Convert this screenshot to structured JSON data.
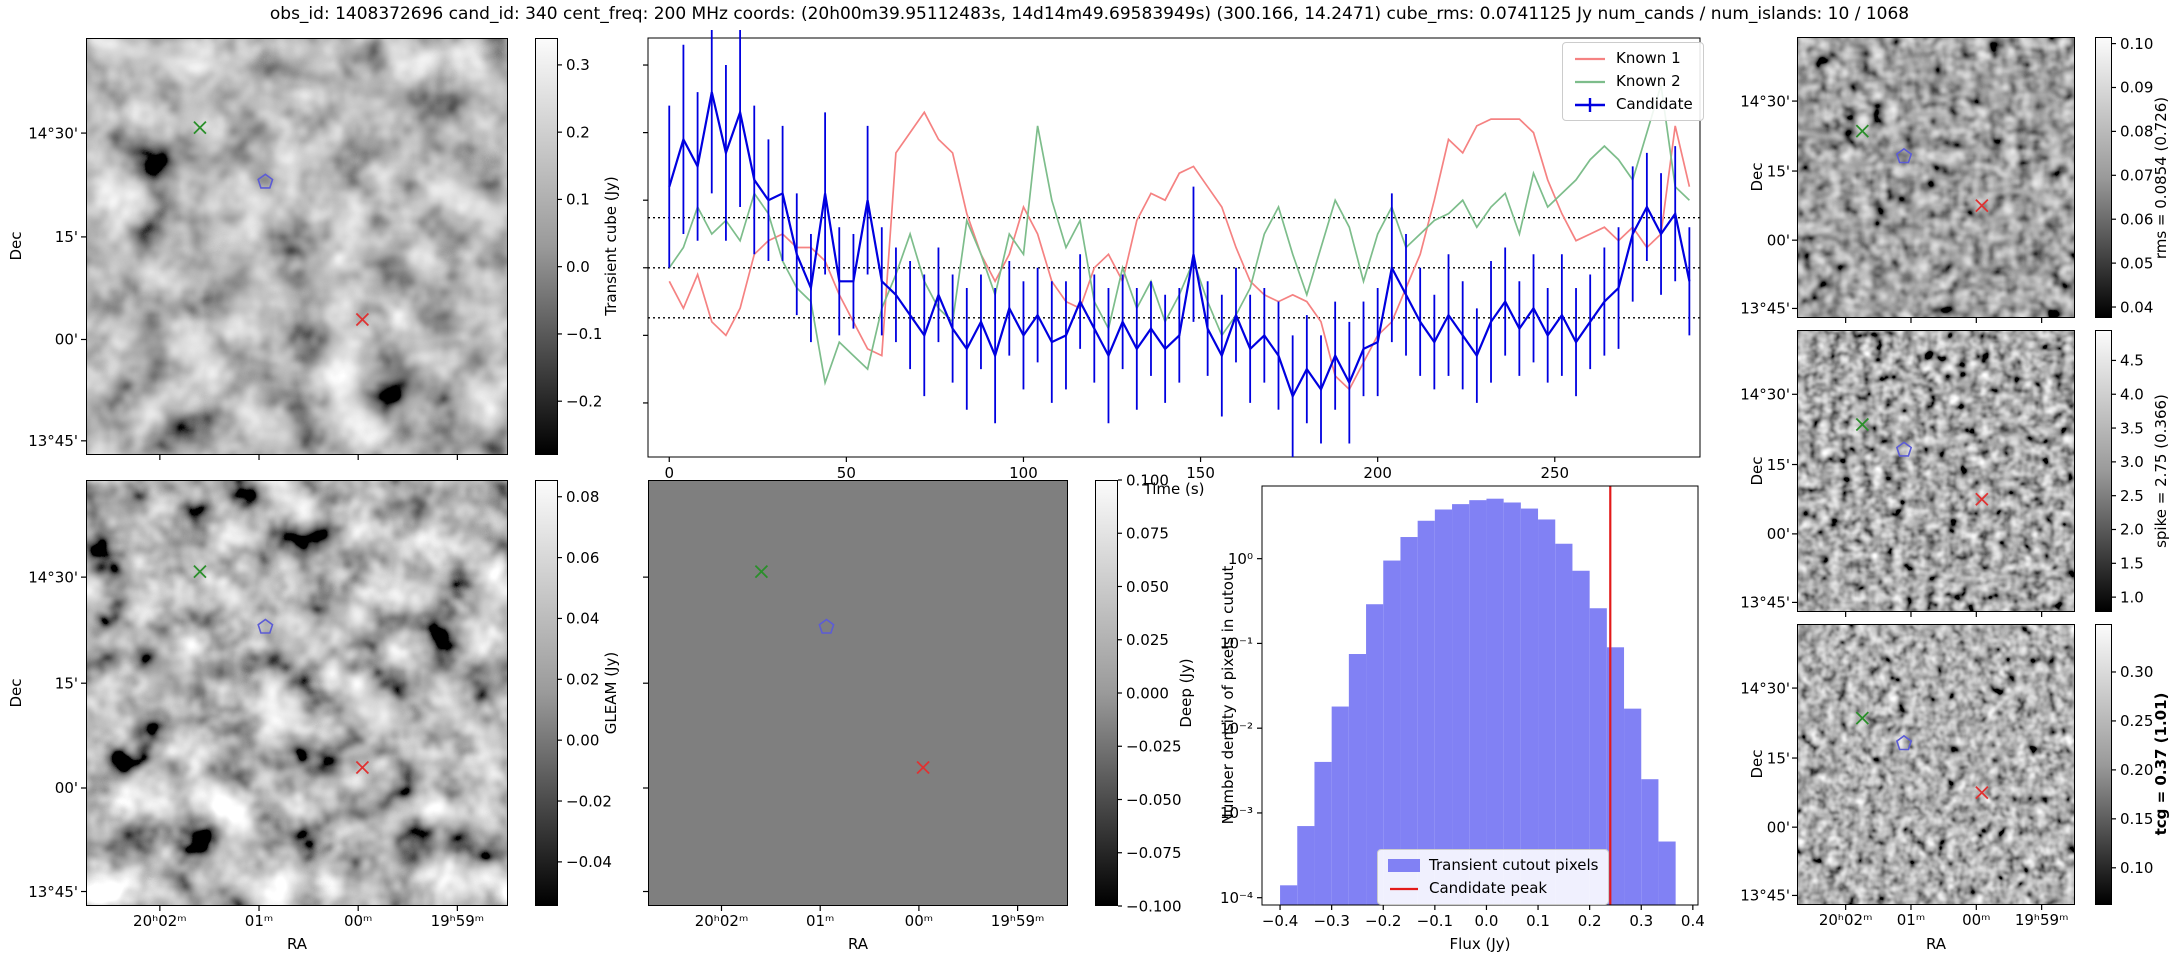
{
  "title": "obs_id: 1408372696 cand_id: 340 cent_freq: 200 MHz coords: (20h00m39.95112483s, 14d14m49.69583949s) (300.166, 14.2471) cube_rms: 0.0741125 Jy num_cands / num_islands: 10 / 1068",
  "axes": {
    "ra_label": "RA",
    "dec_label": "Dec",
    "ra_ticks": [
      "20ʰ02ᵐ",
      "01ᵐ",
      "00ᵐ",
      "19ʰ59ᵐ"
    ],
    "dec_ticks": [
      "14°30'",
      "15'",
      "00'",
      "13°45'"
    ]
  },
  "markers": {
    "candidate": {
      "shape": "pentagon",
      "color": "#5c5cd6"
    },
    "known1": {
      "shape": "x",
      "color": "#e03131"
    },
    "known2": {
      "shape": "x",
      "color": "#2a8f2a"
    }
  },
  "colorbars": {
    "transient": {
      "label": "Transient cube (Jy)",
      "vmax": 0.34,
      "vmin": -0.28,
      "ticks": [
        {
          "v": 0.3,
          "label": "0.3"
        },
        {
          "v": 0.2,
          "label": "0.2"
        },
        {
          "v": 0.1,
          "label": "0.1"
        },
        {
          "v": 0.0,
          "label": "0.0"
        },
        {
          "v": -0.1,
          "label": "−0.1"
        },
        {
          "v": -0.2,
          "label": "−0.2"
        }
      ]
    },
    "gleam": {
      "label": "GLEAM (Jy)",
      "vmax": 0.0855,
      "vmin": -0.0545,
      "ticks": [
        {
          "v": 0.08,
          "label": "0.08"
        },
        {
          "v": 0.06,
          "label": "0.06"
        },
        {
          "v": 0.04,
          "label": "0.04"
        },
        {
          "v": 0.02,
          "label": "0.02"
        },
        {
          "v": 0.0,
          "label": "0.00"
        },
        {
          "v": -0.02,
          "label": "−0.02"
        },
        {
          "v": -0.04,
          "label": "−0.04"
        }
      ]
    },
    "deep": {
      "label": "Deep (Jy)",
      "vmax": 0.1,
      "vmin": -0.1,
      "ticks": [
        {
          "v": 0.1,
          "label": "0.100"
        },
        {
          "v": 0.075,
          "label": "0.075"
        },
        {
          "v": 0.05,
          "label": "0.050"
        },
        {
          "v": 0.025,
          "label": "0.025"
        },
        {
          "v": 0.0,
          "label": "0.000"
        },
        {
          "v": -0.025,
          "label": "−0.025"
        },
        {
          "v": -0.05,
          "label": "−0.050"
        },
        {
          "v": -0.075,
          "label": "−0.075"
        },
        {
          "v": -0.1,
          "label": "−0.100"
        }
      ]
    },
    "rms": {
      "label": "rms = 0.0854 (0.726)",
      "vmax": 0.1015,
      "vmin": 0.0375,
      "ticks": [
        {
          "v": 0.1,
          "label": "0.10"
        },
        {
          "v": 0.09,
          "label": "0.09"
        },
        {
          "v": 0.08,
          "label": "0.08"
        },
        {
          "v": 0.07,
          "label": "0.07"
        },
        {
          "v": 0.06,
          "label": "0.06"
        },
        {
          "v": 0.05,
          "label": "0.05"
        },
        {
          "v": 0.04,
          "label": "0.04"
        }
      ]
    },
    "spike": {
      "label": "spike = 2.75 (0.366)",
      "vmax": 4.95,
      "vmin": 0.78,
      "ticks": [
        {
          "v": 4.5,
          "label": "4.5"
        },
        {
          "v": 4.0,
          "label": "4.0"
        },
        {
          "v": 3.5,
          "label": "3.5"
        },
        {
          "v": 3.0,
          "label": "3.0"
        },
        {
          "v": 2.5,
          "label": "2.5"
        },
        {
          "v": 2.0,
          "label": "2.0"
        },
        {
          "v": 1.5,
          "label": "1.5"
        },
        {
          "v": 1.0,
          "label": "1.0"
        }
      ]
    },
    "tcg": {
      "label": "tcg = 0.37 (1.01)",
      "bold": true,
      "vmax": 0.349,
      "vmin": 0.062,
      "ticks": [
        {
          "v": 0.3,
          "label": "0.30"
        },
        {
          "v": 0.25,
          "label": "0.25"
        },
        {
          "v": 0.2,
          "label": "0.20"
        },
        {
          "v": 0.15,
          "label": "0.15"
        },
        {
          "v": 0.1,
          "label": "0.10"
        }
      ]
    }
  },
  "chart_data": [
    {
      "type": "line",
      "title": "",
      "xlabel": "Time (s)",
      "ylabel": "Transient cube (Jy)",
      "xlim": [
        -6,
        291
      ],
      "ylim": [
        -0.28,
        0.34
      ],
      "grid": false,
      "legend_position": "upper right",
      "x_ticks": [
        {
          "v": 0,
          "label": "0"
        },
        {
          "v": 50,
          "label": "50"
        },
        {
          "v": 100,
          "label": "100"
        },
        {
          "v": 150,
          "label": "150"
        },
        {
          "v": 200,
          "label": "200"
        },
        {
          "v": 250,
          "label": "250"
        }
      ],
      "hlines": [
        0.0741125,
        0,
        -0.0741125
      ],
      "x_start": 0,
      "x_step": 4,
      "series": [
        {
          "name": "Known 1",
          "color": "#f58282",
          "values": [
            -0.02,
            -0.06,
            -0.01,
            -0.08,
            -0.1,
            -0.06,
            0.02,
            0.04,
            0.05,
            0.03,
            0.03,
            0.01,
            -0.04,
            -0.08,
            -0.12,
            -0.13,
            0.17,
            0.2,
            0.23,
            0.19,
            0.17,
            0.08,
            0.02,
            -0.02,
            0.02,
            0.09,
            0.05,
            -0.02,
            -0.05,
            -0.06,
            0.0,
            0.02,
            -0.02,
            0.07,
            0.11,
            0.1,
            0.14,
            0.15,
            0.12,
            0.09,
            0.03,
            -0.02,
            -0.04,
            -0.05,
            -0.04,
            -0.05,
            -0.08,
            -0.16,
            -0.18,
            -0.14,
            -0.1,
            -0.08,
            -0.03,
            0.02,
            0.1,
            0.19,
            0.17,
            0.21,
            0.22,
            0.22,
            0.22,
            0.2,
            0.13,
            0.08,
            0.04,
            0.05,
            0.06,
            0.04,
            0.06,
            0.03,
            0.05,
            0.21,
            0.12
          ]
        },
        {
          "name": "Known 2",
          "color": "#7dbd8b",
          "values": [
            0.0,
            0.03,
            0.09,
            0.05,
            0.07,
            0.04,
            0.11,
            0.08,
            0.01,
            -0.03,
            -0.05,
            -0.17,
            -0.11,
            -0.13,
            -0.15,
            -0.06,
            -0.01,
            0.05,
            -0.02,
            -0.06,
            -0.08,
            0.07,
            0.02,
            -0.04,
            0.05,
            0.02,
            0.21,
            0.1,
            0.03,
            0.07,
            -0.05,
            -0.09,
            0.0,
            -0.06,
            -0.02,
            -0.08,
            -0.04,
            0.01,
            -0.05,
            -0.1,
            -0.07,
            -0.03,
            0.05,
            0.09,
            0.02,
            -0.04,
            0.03,
            0.1,
            0.06,
            -0.02,
            0.05,
            0.09,
            0.03,
            0.05,
            0.07,
            0.08,
            0.1,
            0.06,
            0.09,
            0.11,
            0.05,
            0.14,
            0.09,
            0.11,
            0.13,
            0.16,
            0.18,
            0.16,
            0.13,
            0.2,
            0.27,
            0.12,
            0.1
          ]
        },
        {
          "name": "Candidate",
          "color": "#0000e0",
          "values": [
            0.12,
            0.19,
            0.15,
            0.26,
            0.17,
            0.23,
            0.13,
            0.1,
            0.11,
            0.02,
            -0.03,
            0.11,
            -0.02,
            -0.02,
            0.1,
            -0.02,
            -0.04,
            -0.07,
            -0.1,
            -0.04,
            -0.09,
            -0.12,
            -0.08,
            -0.13,
            -0.06,
            -0.1,
            -0.07,
            -0.11,
            -0.1,
            -0.05,
            -0.09,
            -0.13,
            -0.08,
            -0.12,
            -0.09,
            -0.12,
            -0.1,
            0.02,
            -0.09,
            -0.13,
            -0.07,
            -0.12,
            -0.1,
            -0.13,
            -0.19,
            -0.15,
            -0.18,
            -0.13,
            -0.17,
            -0.12,
            -0.11,
            0.0,
            -0.04,
            -0.08,
            -0.11,
            -0.07,
            -0.1,
            -0.13,
            -0.08,
            -0.05,
            -0.09,
            -0.06,
            -0.1,
            -0.07,
            -0.11,
            -0.08,
            -0.05,
            -0.03,
            0.05,
            0.09,
            0.05,
            0.08,
            -0.02
          ],
          "yerr": [
            0.12,
            0.14,
            0.11,
            0.15,
            0.13,
            0.14,
            0.11,
            0.09,
            0.1,
            0.09,
            0.08,
            0.12,
            0.08,
            0.07,
            0.11,
            0.08,
            0.07,
            0.08,
            0.09,
            0.07,
            0.08,
            0.09,
            0.07,
            0.1,
            0.07,
            0.08,
            0.07,
            0.09,
            0.08,
            0.07,
            0.08,
            0.1,
            0.07,
            0.09,
            0.07,
            0.08,
            0.07,
            0.1,
            0.07,
            0.09,
            0.07,
            0.08,
            0.07,
            0.08,
            0.09,
            0.08,
            0.08,
            0.08,
            0.09,
            0.07,
            0.08,
            0.11,
            0.09,
            0.08,
            0.07,
            0.09,
            0.08,
            0.07,
            0.09,
            0.08,
            0.07,
            0.08,
            0.07,
            0.09,
            0.08,
            0.07,
            0.08,
            0.09,
            0.1,
            0.08,
            0.09,
            0.1,
            0.08
          ]
        }
      ]
    },
    {
      "type": "bar",
      "title": "",
      "xlabel": "Flux (Jy)",
      "ylabel": "Number density of pixels in cutout",
      "xlim": [
        -0.435,
        0.41
      ],
      "ylog": true,
      "ylim": [
        8.2e-05,
        7.2
      ],
      "x_ticks": [
        {
          "v": -0.4,
          "label": "−0.4"
        },
        {
          "v": -0.3,
          "label": "−0.3"
        },
        {
          "v": -0.2,
          "label": "−0.2"
        },
        {
          "v": -0.1,
          "label": "−0.1"
        },
        {
          "v": 0.0,
          "label": "0.0"
        },
        {
          "v": 0.1,
          "label": "0.1"
        },
        {
          "v": 0.2,
          "label": "0.2"
        },
        {
          "v": 0.3,
          "label": "0.3"
        },
        {
          "v": 0.4,
          "label": "0.4"
        }
      ],
      "y_ticks": [
        {
          "v": 1,
          "label": "10⁰"
        },
        {
          "v": 0.1,
          "label": "10⁻¹"
        },
        {
          "v": 0.01,
          "label": "10⁻²"
        },
        {
          "v": 0.001,
          "label": "10⁻³"
        },
        {
          "v": 0.0001,
          "label": "10⁻⁴"
        }
      ],
      "bin_start": -0.4,
      "bin_width": 0.033333,
      "values": [
        0.00014,
        0.0007,
        0.004,
        0.018,
        0.075,
        0.29,
        0.95,
        1.8,
        2.8,
        3.8,
        4.4,
        4.9,
        5.1,
        4.6,
        3.9,
        2.9,
        1.5,
        0.72,
        0.26,
        0.09,
        0.017,
        0.0025,
        0.00046
      ],
      "candidate_peak": 0.24,
      "bar_color": "#8181f4",
      "line_color": "#e31a1a",
      "legend": [
        {
          "label": "Transient cutout pixels",
          "type": "patch"
        },
        {
          "label": "Candidate peak",
          "type": "line"
        }
      ]
    }
  ]
}
